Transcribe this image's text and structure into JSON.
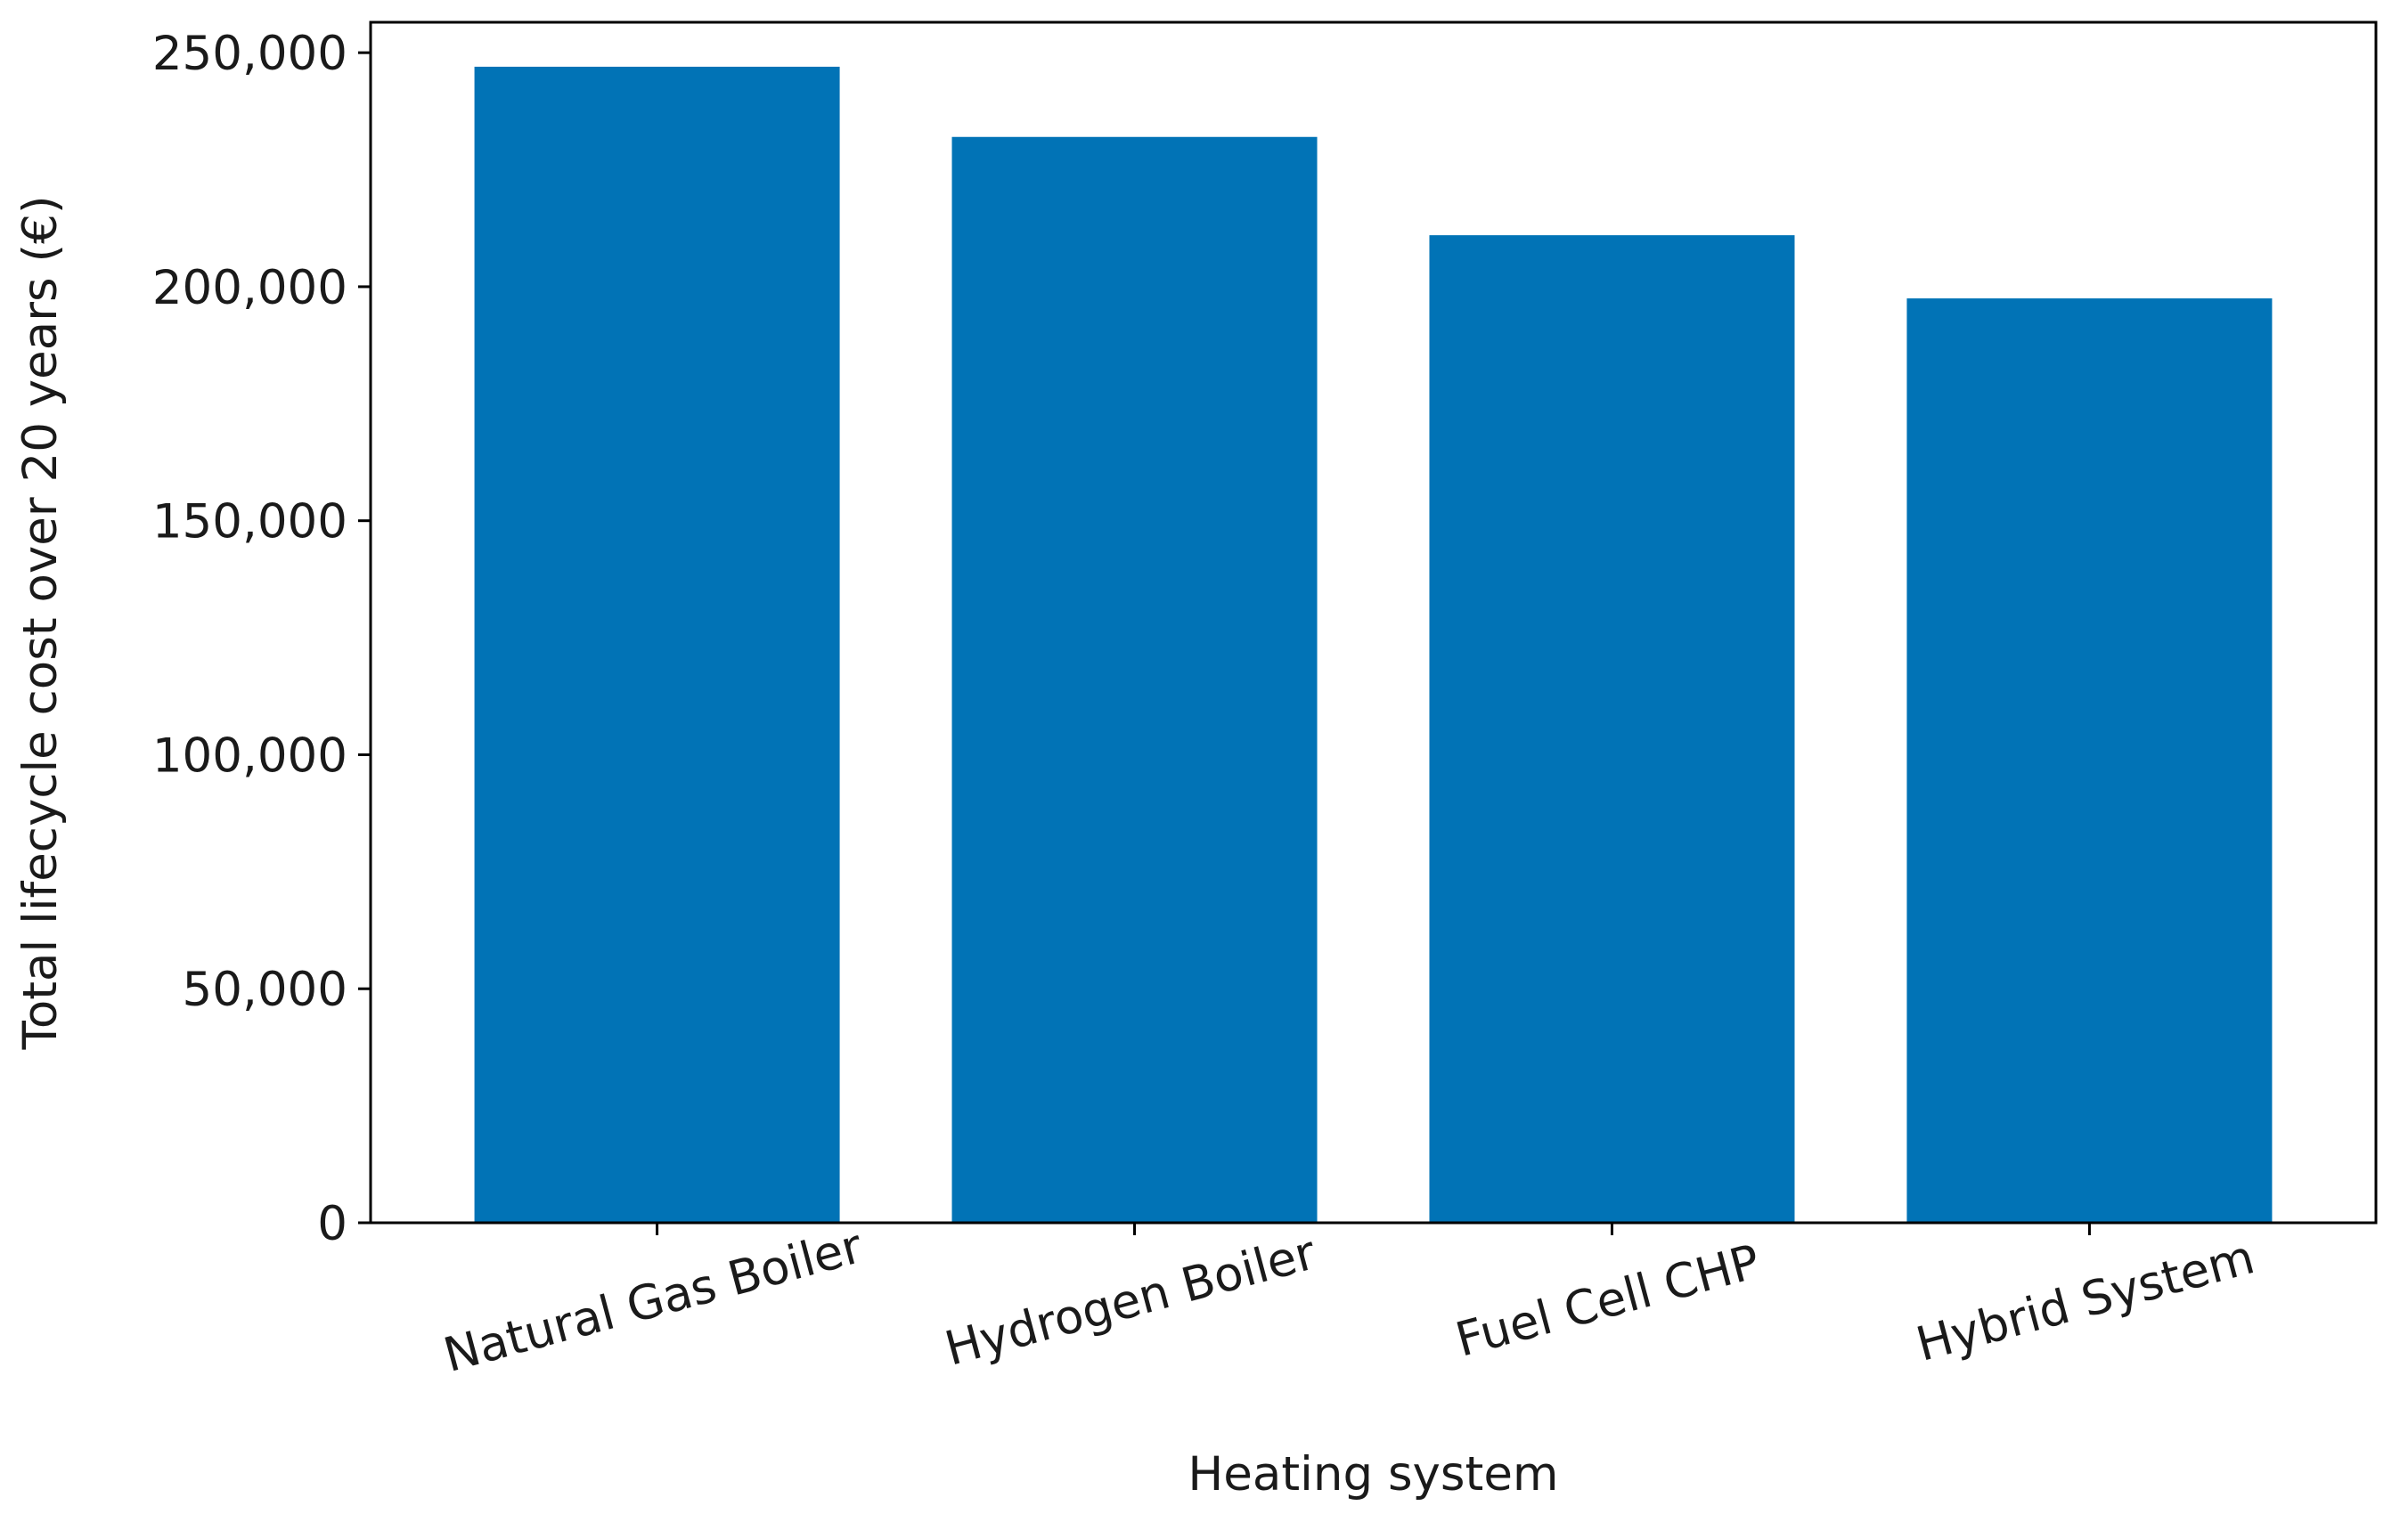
{
  "chart_data": {
    "type": "bar",
    "title": "",
    "xlabel": "Heating system",
    "ylabel": "Total lifecycle cost over 20 years (€)",
    "categories": [
      "Natural Gas Boiler",
      "Hydrogen Boiler",
      "Fuel Cell CHP",
      "Hybrid System"
    ],
    "values": [
      247000,
      232000,
      211000,
      197500
    ],
    "ylim": [
      0,
      256500
    ],
    "yticks": [
      0,
      50000,
      100000,
      150000,
      200000,
      250000
    ],
    "ytick_labels": [
      "0",
      "50,000",
      "100,000",
      "150,000",
      "200,000",
      "250,000"
    ],
    "bar_color": "#0173b6",
    "grid": false,
    "legend": "none"
  }
}
